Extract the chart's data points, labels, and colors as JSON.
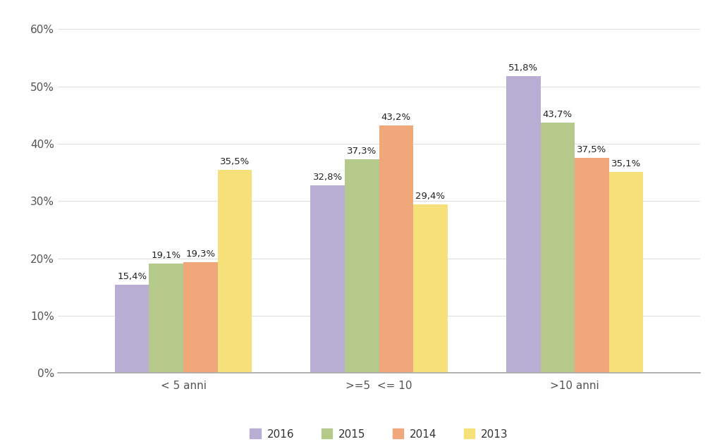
{
  "categories": [
    "< 5 anni",
    ">=5  <= 10",
    ">10 anni"
  ],
  "series": {
    "2016": [
      15.4,
      32.8,
      51.8
    ],
    "2015": [
      19.1,
      37.3,
      43.7
    ],
    "2014": [
      19.3,
      43.2,
      37.5
    ],
    "2013": [
      35.5,
      29.4,
      35.1
    ]
  },
  "colors": {
    "2016": "#b8aed4",
    "2015": "#b5c98a",
    "2014": "#f0a87a",
    "2013": "#f5e07a"
  },
  "ylim": [
    0,
    62
  ],
  "yticks": [
    0,
    10,
    20,
    30,
    40,
    50,
    60
  ],
  "bar_width": 0.21,
  "background_color": "#ffffff",
  "label_fontsize": 9.5,
  "tick_fontsize": 11,
  "legend_fontsize": 11
}
